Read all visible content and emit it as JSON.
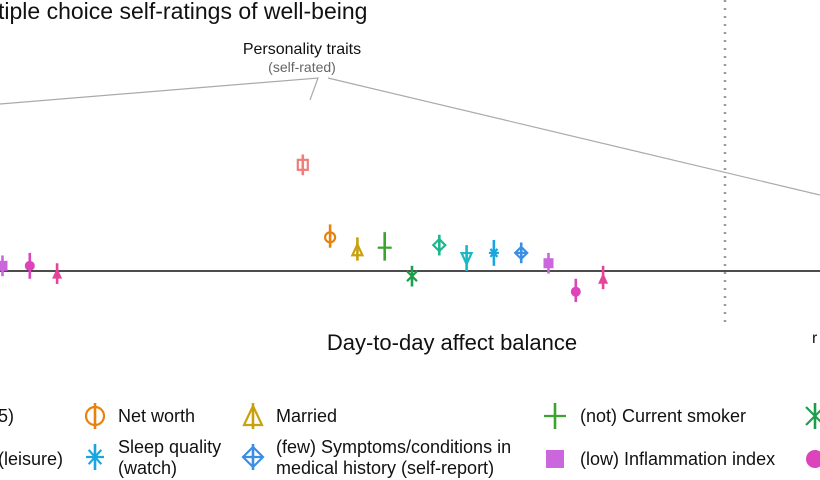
{
  "chart_data": {
    "type": "scatter",
    "title": "tiple choice self-ratings of well-being",
    "sections": [
      "Day-to-day affect balance"
    ],
    "annotation": {
      "label": "Personality traits",
      "sublabel": "(self-rated)"
    },
    "zero_line": 0,
    "y_range": [
      -0.15,
      0.95
    ],
    "points": [
      {
        "label": "(low) Inflammation index",
        "marker": "square",
        "color": "#cc66dd",
        "x": 1,
        "value": 0.02,
        "ci": [
          -0.02,
          0.06
        ]
      },
      {
        "label": "",
        "marker": "circle",
        "color": "#dd44bb",
        "x": 2,
        "value": 0.02,
        "ci": [
          -0.03,
          0.07
        ]
      },
      {
        "label": "",
        "marker": "triangle",
        "color": "#e6449a",
        "x": 3,
        "value": -0.01,
        "ci": [
          -0.05,
          0.03
        ]
      },
      {
        "label": "Personality traits (self-rated)",
        "marker": "square-open",
        "color": "#f07c7c",
        "x": 12,
        "value": 0.41,
        "ci": [
          0.37,
          0.45
        ]
      },
      {
        "label": "Net worth",
        "marker": "circle-open",
        "color": "#e8820c",
        "x": 13,
        "value": 0.13,
        "ci": [
          0.09,
          0.18
        ]
      },
      {
        "label": "Married",
        "marker": "triangle-open",
        "color": "#c9a00d",
        "x": 14,
        "value": 0.08,
        "ci": [
          0.04,
          0.13
        ]
      },
      {
        "label": "(not) Current smoker",
        "marker": "plus",
        "color": "#39a52f",
        "x": 15,
        "value": 0.09,
        "ci": [
          0.04,
          0.15
        ]
      },
      {
        "label": "",
        "marker": "x",
        "color": "#1e9e4a",
        "x": 16,
        "value": -0.02,
        "ci": [
          -0.06,
          0.02
        ]
      },
      {
        "label": "",
        "marker": "diamond-open",
        "color": "#1fb58f",
        "x": 17,
        "value": 0.1,
        "ci": [
          0.06,
          0.14
        ]
      },
      {
        "label": "",
        "marker": "triangle-down-open",
        "color": "#19b8c2",
        "x": 18,
        "value": 0.05,
        "ci": [
          0.0,
          0.1
        ]
      },
      {
        "label": "Sleep quality (watch)",
        "marker": "asterisk",
        "color": "#19a6e0",
        "x": 19,
        "value": 0.07,
        "ci": [
          0.02,
          0.12
        ]
      },
      {
        "label": "(few) Symptoms/conditions in medical history (self-report)",
        "marker": "diamond-plus",
        "color": "#3a8ee6",
        "x": 20,
        "value": 0.07,
        "ci": [
          0.03,
          0.11
        ]
      },
      {
        "label": "(low) Inflammation index",
        "marker": "square",
        "color": "#cc66dd",
        "x": 21,
        "value": 0.03,
        "ci": [
          -0.01,
          0.07
        ]
      },
      {
        "label": "",
        "marker": "circle",
        "color": "#dd44bb",
        "x": 22,
        "value": -0.08,
        "ci": [
          -0.12,
          -0.03
        ]
      },
      {
        "label": "",
        "marker": "triangle",
        "color": "#e6449a",
        "x": 23,
        "value": -0.03,
        "ci": [
          -0.07,
          0.02
        ]
      }
    ],
    "legend": [
      {
        "label": "5)",
        "marker": "none",
        "color": "#111111"
      },
      {
        "label": "Net worth",
        "marker": "circle-open",
        "color": "#e8820c"
      },
      {
        "label": "Married",
        "marker": "triangle-open",
        "color": "#c9a00d"
      },
      {
        "label": "(not) Current smoker",
        "marker": "plus",
        "color": "#39a52f"
      },
      {
        "label": "",
        "marker": "x",
        "color": "#1e9e4a"
      },
      {
        "label": "(leisure)",
        "marker": "none",
        "color": "#111111"
      },
      {
        "label": "Sleep quality",
        "label2": "(watch)",
        "marker": "asterisk",
        "color": "#19a6e0"
      },
      {
        "label": "(few) Symptoms/conditions in",
        "label2": "medical history (self-report)",
        "marker": "diamond-plus",
        "color": "#3a8ee6"
      },
      {
        "label": "(low) Inflammation index",
        "marker": "square",
        "color": "#cc66dd"
      },
      {
        "label": "",
        "marker": "circle",
        "color": "#dd44bb"
      }
    ],
    "right_edge_text": "r"
  }
}
